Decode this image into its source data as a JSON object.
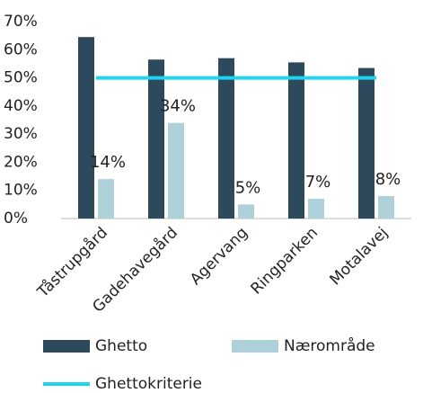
{
  "chart_data": {
    "type": "bar",
    "categories": [
      "Tåstrupgård",
      "Gadehavegård",
      "Agervang",
      "Ringparken",
      "Motalavej"
    ],
    "series": [
      {
        "name": "Ghetto",
        "color": "#2d4a5d",
        "values": [
          64.5,
          56.5,
          57,
          55.5,
          53.5
        ]
      },
      {
        "name": "Nærområde",
        "color": "#aed0d9",
        "values": [
          14,
          34,
          5,
          7,
          8
        ],
        "value_labels": [
          "14%",
          "34%",
          "5%",
          "7%",
          "8%"
        ]
      },
      {
        "name": "Ghettokriterie",
        "type": "line",
        "color": "#1fd5ef",
        "values": [
          50,
          50,
          50,
          50,
          50
        ]
      }
    ],
    "ylim": [
      0,
      70
    ],
    "yticks": [
      {
        "value": 0,
        "label": "0%"
      },
      {
        "value": 10,
        "label": "10%"
      },
      {
        "value": 20,
        "label": "20%"
      },
      {
        "value": 30,
        "label": "30%"
      },
      {
        "value": 40,
        "label": "40%"
      },
      {
        "value": 50,
        "label": "50%"
      },
      {
        "value": 60,
        "label": "60%"
      },
      {
        "value": 70,
        "label": "70%"
      }
    ],
    "legend": "bottom"
  }
}
